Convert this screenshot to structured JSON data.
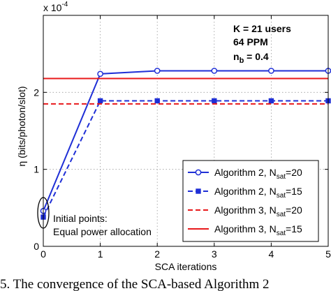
{
  "chart_data": {
    "type": "line",
    "x": [
      0,
      1,
      2,
      3,
      4,
      5
    ],
    "xlabel": "SCA iterations",
    "ylabel": "η (bits/photon/slot)",
    "y_multiplier": "x 10",
    "y_exponent": "-4",
    "xlim": [
      0,
      5
    ],
    "ylim": [
      0,
      3
    ],
    "xticks": [
      "0",
      "1",
      "2",
      "3",
      "4",
      "5"
    ],
    "yticks": [
      "0",
      "1",
      "2"
    ],
    "grid": true,
    "legend_position": "bottom-right",
    "series": [
      {
        "name_main": "Algorithm 2, N",
        "name_sub": "sat",
        "name_tail": "=20",
        "values": [
          0.46,
          2.24,
          2.28,
          2.28,
          2.28,
          2.28
        ],
        "color": "#1f2fd6",
        "style": "solid",
        "marker": "circle"
      },
      {
        "name_main": "Algorithm 2, N",
        "name_sub": "sat",
        "name_tail": "=15",
        "values": [
          0.38,
          1.89,
          1.89,
          1.89,
          1.89,
          1.89
        ],
        "color": "#1f2fd6",
        "style": "dashed",
        "marker": "square"
      },
      {
        "name_main": "Algorithm 3, N",
        "name_sub": "sat",
        "name_tail": "=20",
        "values": [
          1.85,
          1.85,
          1.85,
          1.85,
          1.85,
          1.85
        ],
        "color": "#e8191b",
        "style": "dashed",
        "marker": "none"
      },
      {
        "name_main": "Algorithm 3, N",
        "name_sub": "sat",
        "name_tail": "=15",
        "values": [
          2.18,
          2.18,
          2.18,
          2.18,
          2.18,
          2.18
        ],
        "color": "#e8191b",
        "style": "solid",
        "marker": "none"
      }
    ],
    "annotations": {
      "params_line1": "K = 21 users",
      "params_line2": "64 PPM",
      "params_line3_main": "n",
      "params_line3_sub": "b",
      "params_line3_tail": " = 0.4",
      "initial_line1": "Initial points:",
      "initial_line2": "Equal power allocation"
    }
  },
  "caption": "5.   The convergence of the SCA-based Algorithm 2"
}
